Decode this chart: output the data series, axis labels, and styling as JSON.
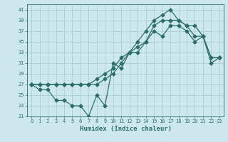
{
  "xlabel": "Humidex (Indice chaleur)",
  "bg_color": "#cce8ec",
  "grid_color": "#aacdd4",
  "line_color": "#2d6e68",
  "xlim": [
    -0.5,
    23.5
  ],
  "ylim": [
    21,
    42
  ],
  "yticks": [
    21,
    23,
    25,
    27,
    29,
    31,
    33,
    35,
    37,
    39,
    41
  ],
  "xticks": [
    0,
    1,
    2,
    3,
    4,
    5,
    6,
    7,
    8,
    9,
    10,
    11,
    12,
    13,
    14,
    15,
    16,
    17,
    18,
    19,
    20,
    21,
    22,
    23
  ],
  "line1_x": [
    0,
    1,
    2,
    3,
    4,
    5,
    6,
    7,
    8,
    9,
    10,
    11,
    12,
    13,
    14,
    15,
    16,
    17,
    18,
    19,
    20,
    21,
    22,
    23
  ],
  "line1_y": [
    27,
    26,
    26,
    24,
    24,
    23,
    23,
    21,
    25,
    23,
    31,
    30,
    33,
    34,
    35,
    37,
    36,
    38,
    38,
    37,
    35,
    36,
    31,
    32
  ],
  "line2_x": [
    0,
    1,
    2,
    3,
    4,
    5,
    6,
    7,
    8,
    9,
    10,
    11,
    12,
    13,
    14,
    15,
    16,
    17,
    18,
    19,
    20,
    21,
    22,
    23
  ],
  "line2_y": [
    27,
    27,
    27,
    27,
    27,
    27,
    27,
    27,
    27,
    28,
    29,
    31,
    33,
    35,
    37,
    39,
    40,
    41,
    39,
    38,
    38,
    36,
    32,
    32
  ],
  "line3_x": [
    0,
    1,
    2,
    3,
    4,
    5,
    6,
    7,
    8,
    9,
    10,
    11,
    12,
    13,
    14,
    15,
    16,
    17,
    18,
    19,
    20,
    21,
    22,
    23
  ],
  "line3_y": [
    27,
    27,
    27,
    27,
    27,
    27,
    27,
    27,
    28,
    29,
    30,
    32,
    33,
    33,
    35,
    38,
    39,
    39,
    39,
    38,
    36,
    36,
    32,
    32
  ]
}
